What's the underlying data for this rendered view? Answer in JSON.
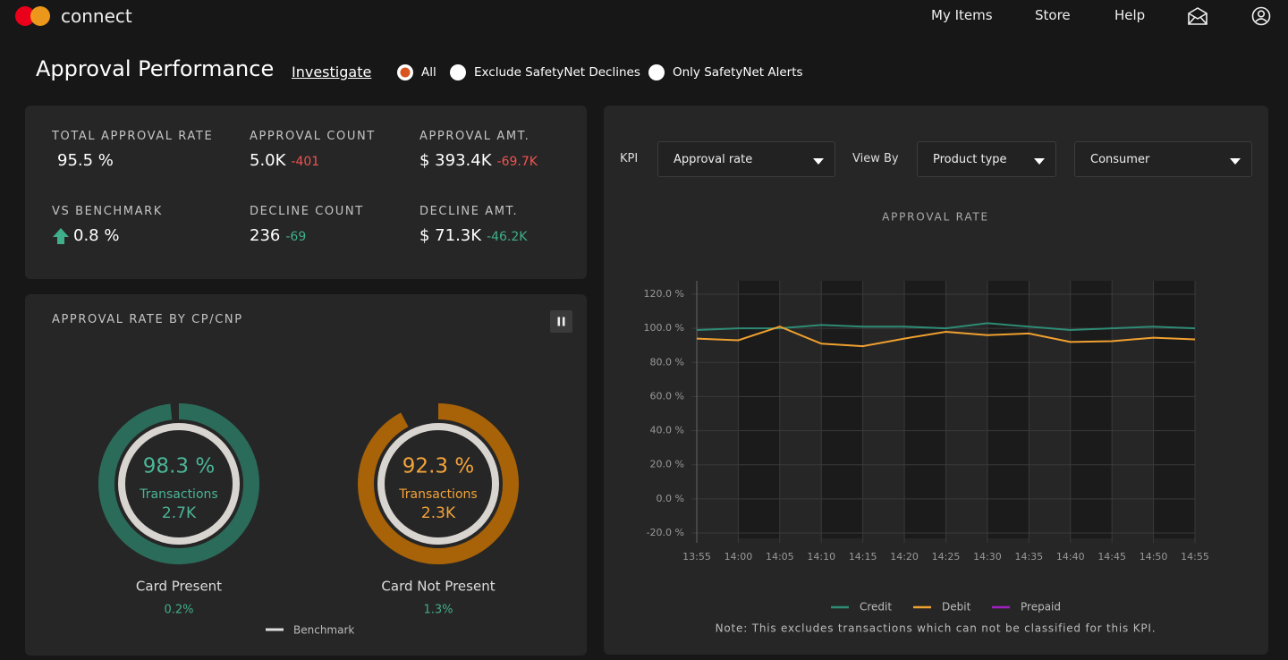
{
  "header": {
    "brand": "connect",
    "nav": [
      "My Items",
      "Store",
      "Help"
    ]
  },
  "page": {
    "title": "Approval Performance",
    "link": "Investigate",
    "filters": [
      {
        "label": "All",
        "selected": true
      },
      {
        "label": "Exclude SafetyNet Declines",
        "selected": false
      },
      {
        "label": "Only SafetyNet Alerts",
        "selected": false
      }
    ]
  },
  "kpis": [
    {
      "label": "TOTAL APPROVAL RATE",
      "value": "95.5 %"
    },
    {
      "label": "APPROVAL COUNT",
      "value": "5.0K",
      "delta": "-401",
      "delta_color": "#ef5350"
    },
    {
      "label": "APPROVAL AMT.",
      "value": "$ 393.4K",
      "delta": "-69.7K",
      "delta_color": "#ef5350"
    },
    {
      "label": "VS BENCHMARK",
      "value": "0.8 %",
      "trend": "up"
    },
    {
      "label": "DECLINE COUNT",
      "value": "236",
      "delta": "-69",
      "delta_color": "#3fae8a"
    },
    {
      "label": "DECLINE AMT.",
      "value": "$ 71.3K",
      "delta": "-46.2K",
      "delta_color": "#3fae8a"
    }
  ],
  "donut_panel": {
    "title": "APPROVAL RATE BY CP/CNP",
    "donuts": [
      {
        "value": 98.3,
        "value_label": "98.3 %",
        "caption": "Transactions",
        "count": "2.7K",
        "name": "Card Present",
        "delta": "0.2%",
        "color": "#2b6b5a",
        "text_color": "#4bb596"
      },
      {
        "value": 92.3,
        "value_label": "92.3 %",
        "caption": "Transactions",
        "count": "2.3K",
        "name": "Card Not Present",
        "delta": "1.3%",
        "color": "#a86208",
        "text_color": "#f2a33a"
      }
    ],
    "legend": "Benchmark"
  },
  "controls": {
    "kpi_label": "KPI",
    "kpi": "Approval rate",
    "view_by_label": "View By",
    "view_by": "Product type",
    "segment": "Consumer"
  },
  "chart_data": {
    "type": "line",
    "title": "APPROVAL RATE",
    "categories": [
      "13:55",
      "14:00",
      "14:05",
      "14:10",
      "14:15",
      "14:20",
      "14:25",
      "14:30",
      "14:35",
      "14:40",
      "14:45",
      "14:50",
      "14:55"
    ],
    "series": [
      {
        "name": "Credit",
        "color": "#2e8b74",
        "values": [
          99,
          100,
          100,
          102,
          101,
          101,
          100,
          103,
          101,
          99,
          100,
          101,
          100
        ]
      },
      {
        "name": "Debit",
        "color": "#f0a030",
        "values": [
          94,
          93,
          101,
          91,
          89.5,
          94,
          98,
          96,
          97,
          92,
          92.5,
          94.5,
          93.5
        ]
      },
      {
        "name": "Prepaid",
        "color": "#a020c0",
        "values": [
          null,
          null,
          null,
          null,
          null,
          null,
          null,
          null,
          null,
          null,
          null,
          null,
          null
        ]
      }
    ],
    "ylim": [
      -20,
      120
    ],
    "yticks": [
      {
        "value": -20,
        "label": "-20.0 %"
      },
      {
        "value": 0,
        "label": "0.0 %"
      },
      {
        "value": 20,
        "label": "20.0 %"
      },
      {
        "value": 40,
        "label": "40.0 %"
      },
      {
        "value": 60,
        "label": "60.0 %"
      },
      {
        "value": 80,
        "label": "80.0 %"
      },
      {
        "value": 100,
        "label": "100.0 %"
      },
      {
        "value": 120,
        "label": "120.0 %"
      }
    ],
    "grid": true,
    "note": "Note: This excludes transactions which can not be classified for this KPI."
  }
}
